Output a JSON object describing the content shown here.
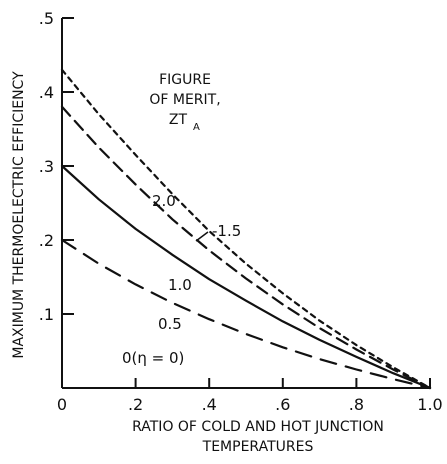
{
  "chart_data": {
    "type": "line",
    "title": "",
    "xlabel": "RATIO OF COLD AND HOT JUNCTION TEMPERATURES",
    "ylabel": "MAXIMUM THERMOELECTRIC EFFICIENCY",
    "xlim": [
      0,
      1.0
    ],
    "ylim": [
      0,
      0.5
    ],
    "xticks": [
      0,
      0.2,
      0.4,
      0.6,
      0.8,
      1.0
    ],
    "xtick_labels": [
      "0",
      ".2",
      ".4",
      ".6",
      ".8",
      "1.0"
    ],
    "yticks": [
      0.1,
      0.2,
      0.3,
      0.4,
      0.5
    ],
    "ytick_labels": [
      ".1",
      ".2",
      ".3",
      ".4",
      ".5"
    ],
    "legend": {
      "title_line1": "FIGURE",
      "title_line2": "OF MERIT,",
      "title_line3_main": "ZT",
      "title_line3_sub": "A"
    },
    "series": [
      {
        "label": "0.5",
        "style": "long-dash",
        "x": [
          0,
          0.1,
          0.2,
          0.3,
          0.4,
          0.5,
          0.6,
          0.7,
          0.8,
          0.9,
          1.0
        ],
        "y": [
          0.2,
          0.168,
          0.14,
          0.115,
          0.093,
          0.073,
          0.055,
          0.039,
          0.025,
          0.012,
          0
        ]
      },
      {
        "label": "1.0",
        "style": "solid",
        "x": [
          0,
          0.1,
          0.2,
          0.3,
          0.4,
          0.5,
          0.6,
          0.7,
          0.8,
          0.9,
          1.0
        ],
        "y": [
          0.3,
          0.255,
          0.215,
          0.18,
          0.147,
          0.118,
          0.09,
          0.065,
          0.042,
          0.02,
          0
        ]
      },
      {
        "label": "-1.5",
        "style": "dash",
        "x": [
          0,
          0.1,
          0.2,
          0.3,
          0.4,
          0.5,
          0.6,
          0.7,
          0.8,
          0.9,
          1.0
        ],
        "y": [
          0.38,
          0.325,
          0.275,
          0.228,
          0.186,
          0.148,
          0.113,
          0.081,
          0.052,
          0.025,
          0
        ]
      },
      {
        "label": "2.0",
        "style": "short-dash",
        "x": [
          0,
          0.1,
          0.2,
          0.3,
          0.4,
          0.5,
          0.6,
          0.7,
          0.8,
          0.9,
          1.0
        ],
        "y": [
          0.43,
          0.37,
          0.315,
          0.262,
          0.212,
          0.168,
          0.128,
          0.091,
          0.058,
          0.028,
          0
        ]
      }
    ],
    "annotations": [
      {
        "text": "0(η = 0)"
      }
    ],
    "grid": false
  },
  "colors": {
    "ink": "#111111",
    "background": "#ffffff"
  }
}
